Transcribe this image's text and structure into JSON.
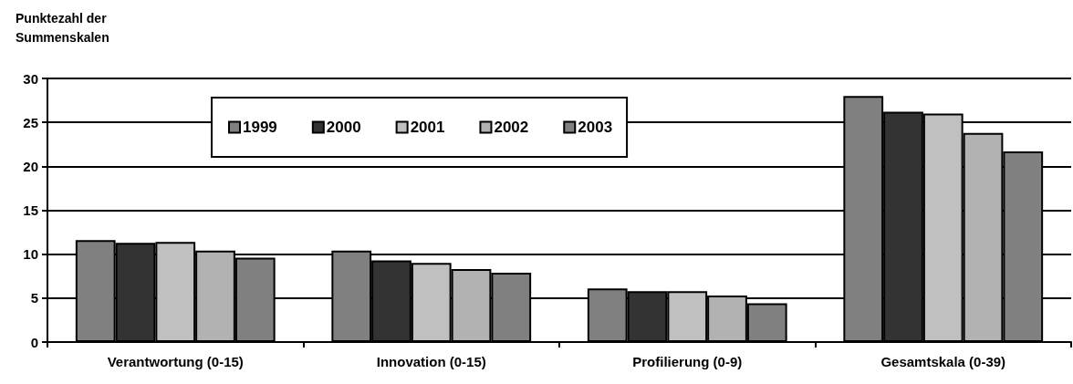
{
  "chart_data": {
    "type": "bar",
    "ylabel": "Punktezahl der Summenskalen",
    "categories": [
      "Verantwortung (0-15)",
      "Innovation (0-15)",
      "Profilierung (0-9)",
      "Gesamtskala (0-39)"
    ],
    "series": [
      {
        "name": "1999",
        "color": "#808080",
        "values": [
          11.6,
          10.4,
          6.1,
          28.0
        ]
      },
      {
        "name": "2000",
        "color": "#333333",
        "values": [
          11.3,
          9.3,
          5.8,
          26.2
        ]
      },
      {
        "name": "2001",
        "color": "#c0c0c0",
        "values": [
          11.4,
          9.0,
          5.8,
          26.0
        ]
      },
      {
        "name": "2002",
        "color": "#b2b2b2",
        "values": [
          10.4,
          8.3,
          5.3,
          23.8
        ]
      },
      {
        "name": "2003",
        "color": "#808080",
        "values": [
          9.6,
          7.9,
          4.4,
          21.7
        ]
      }
    ],
    "ylim": [
      0,
      30
    ],
    "yticks": [
      0,
      5,
      10,
      15,
      20,
      25,
      30
    ],
    "grid": true,
    "legend": "top"
  }
}
